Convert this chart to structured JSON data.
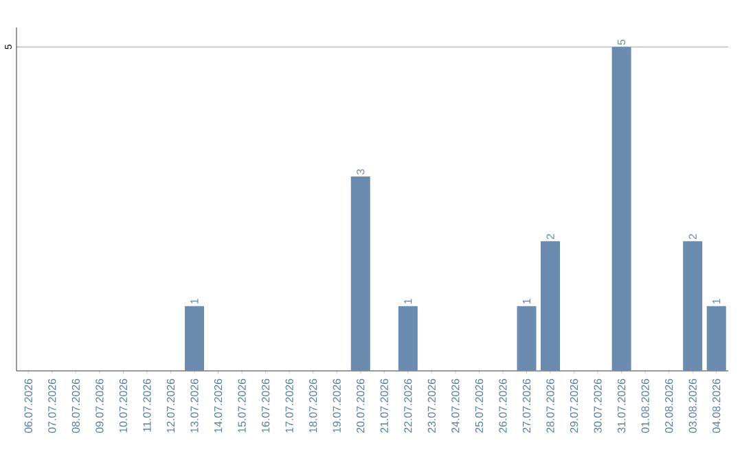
{
  "chart_data": {
    "type": "bar",
    "categories": [
      "06.07.2026",
      "07.07.2026",
      "08.07.2026",
      "09.07.2026",
      "10.07.2026",
      "11.07.2026",
      "12.07.2026",
      "13.07.2026",
      "14.07.2026",
      "15.07.2026",
      "16.07.2026",
      "17.07.2026",
      "18.07.2026",
      "19.07.2026",
      "20.07.2026",
      "21.07.2026",
      "22.07.2026",
      "23.07.2026",
      "24.07.2026",
      "25.07.2026",
      "26.07.2026",
      "27.07.2026",
      "28.07.2026",
      "29.07.2026",
      "30.07.2026",
      "31.07.2026",
      "01.08.2026",
      "02.08.2026",
      "03.08.2026",
      "04.08.2026"
    ],
    "values": [
      0,
      0,
      0,
      0,
      0,
      0,
      0,
      1,
      0,
      0,
      0,
      0,
      0,
      0,
      3,
      0,
      1,
      0,
      0,
      0,
      0,
      1,
      2,
      0,
      0,
      5,
      0,
      0,
      2,
      1
    ],
    "color": "#6b8cae",
    "value_labels": [
      null,
      null,
      null,
      null,
      null,
      null,
      null,
      "1",
      null,
      null,
      null,
      null,
      null,
      null,
      "3",
      null,
      "1",
      null,
      null,
      null,
      null,
      "1",
      "2",
      null,
      null,
      "5",
      null,
      null,
      "2",
      "1"
    ],
    "ylim": [
      0,
      5.3
    ],
    "yticks": [
      5
    ],
    "grid": "y"
  }
}
